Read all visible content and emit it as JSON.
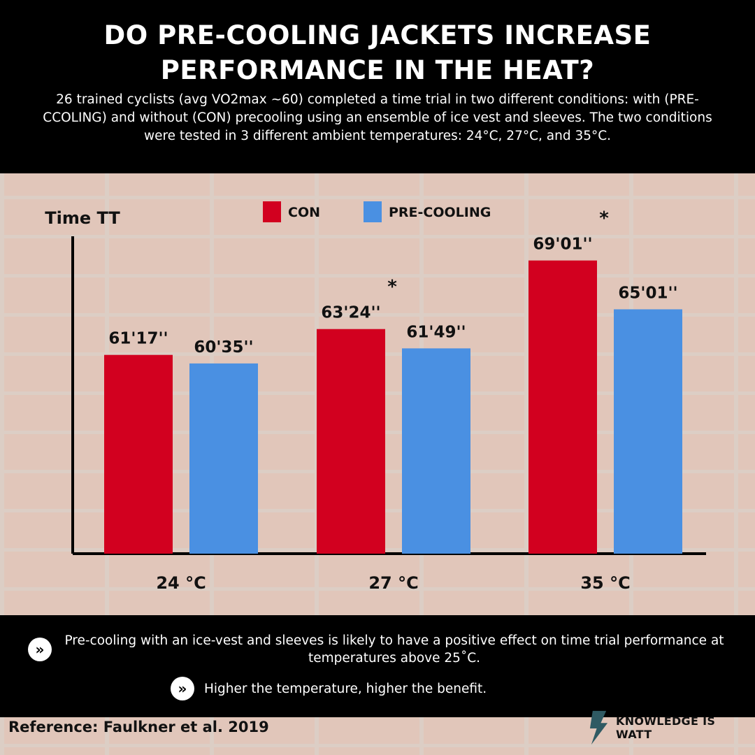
{
  "header": {
    "title_line1": "DO PRE-COOLING JACKETS INCREASE",
    "title_line2": "PERFORMANCE IN THE HEAT?",
    "subtitle": "26 trained cyclists (avg VO2max  ~60) completed a time trial in two different conditions: with (PRE-CCOLING) and without (CON) precooling using an ensemble of ice vest and sleeves. The two conditions were tested in 3 different ambient temperatures: 24°C, 27°C, and 35°C."
  },
  "chart_data": {
    "type": "bar",
    "ylabel": "Time TT",
    "categories": [
      "24 °C",
      "27 °C",
      "35 °C"
    ],
    "series": [
      {
        "name": "CON",
        "color": "#d2001f",
        "values": [
          61.283,
          63.4,
          69.017
        ],
        "value_labels": [
          "61'17''",
          "63'24''",
          "69'01''"
        ]
      },
      {
        "name": "PRE-COOLING",
        "color": "#4a90e2",
        "values": [
          60.583,
          61.817,
          65.017
        ],
        "value_labels": [
          "60'35''",
          "61'49''",
          "65'01''"
        ]
      }
    ],
    "significance": [
      "",
      "*",
      "*"
    ],
    "ylim": [
      45,
      71
    ],
    "legend": "top",
    "grid": false
  },
  "footer": {
    "bullet_icon": "»",
    "bullet1": "Pre-cooling with an ice-vest and sleeves is likely to have a positive effect on time trial performance at temperatures above 25˚C.",
    "bullet2": "Higher the temperature, higher the benefit."
  },
  "reference": "Reference: Faulkner et al. 2019",
  "brand": "KNOWLEDGE IS WATT"
}
